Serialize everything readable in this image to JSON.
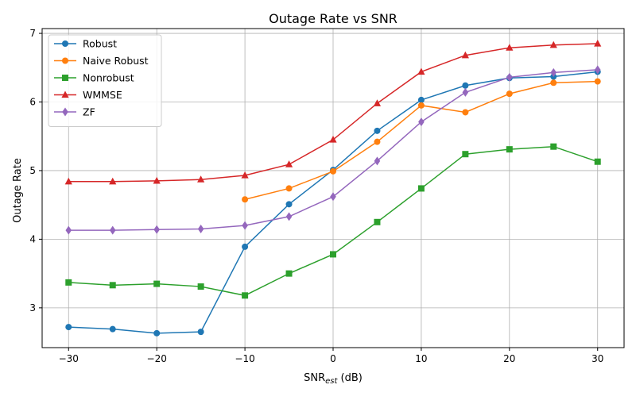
{
  "chart_data": {
    "type": "line",
    "title": "Outage Rate vs SNR",
    "xlabel_main": "SNR",
    "xlabel_sub": "est",
    "xlabel_unit": " (dB)",
    "ylabel": "Outage Rate",
    "xlim": [
      -33,
      33
    ],
    "ylim": [
      2.42,
      7.07
    ],
    "xticks": [
      -30,
      -20,
      -10,
      0,
      10,
      20,
      30
    ],
    "yticks": [
      3,
      4,
      5,
      6,
      7
    ],
    "grid": true,
    "legend_position": "top-left",
    "x": [
      -30,
      -25,
      -20,
      -15,
      -10,
      -5,
      0,
      5,
      10,
      15,
      20,
      25,
      30
    ],
    "series": [
      {
        "name": "Robust",
        "color": "#1f77b4",
        "marker": "circle",
        "values": [
          2.72,
          2.69,
          2.63,
          2.65,
          3.89,
          4.51,
          5.01,
          5.58,
          6.03,
          6.24,
          6.35,
          6.37,
          6.44
        ]
      },
      {
        "name": "Naive Robust",
        "color": "#ff7f0e",
        "marker": "circle",
        "values": [
          null,
          null,
          null,
          null,
          4.58,
          4.74,
          4.99,
          5.42,
          5.95,
          5.85,
          6.12,
          6.28,
          6.3
        ]
      },
      {
        "name": "Nonrobust",
        "color": "#2ca02c",
        "marker": "square",
        "values": [
          3.37,
          3.33,
          3.35,
          3.31,
          3.18,
          3.5,
          3.78,
          4.25,
          4.74,
          5.24,
          5.31,
          5.35,
          5.13
        ]
      },
      {
        "name": "WMMSE",
        "color": "#d62728",
        "marker": "triangle",
        "values": [
          4.84,
          4.84,
          4.85,
          4.87,
          4.93,
          5.09,
          5.45,
          5.98,
          6.44,
          6.68,
          6.79,
          6.83,
          6.85
        ]
      },
      {
        "name": "ZF",
        "color": "#9467bd",
        "marker": "diamond",
        "values": [
          4.13,
          4.13,
          4.14,
          4.15,
          4.2,
          4.33,
          4.62,
          5.14,
          5.71,
          6.14,
          6.36,
          6.43,
          6.47
        ]
      }
    ]
  }
}
